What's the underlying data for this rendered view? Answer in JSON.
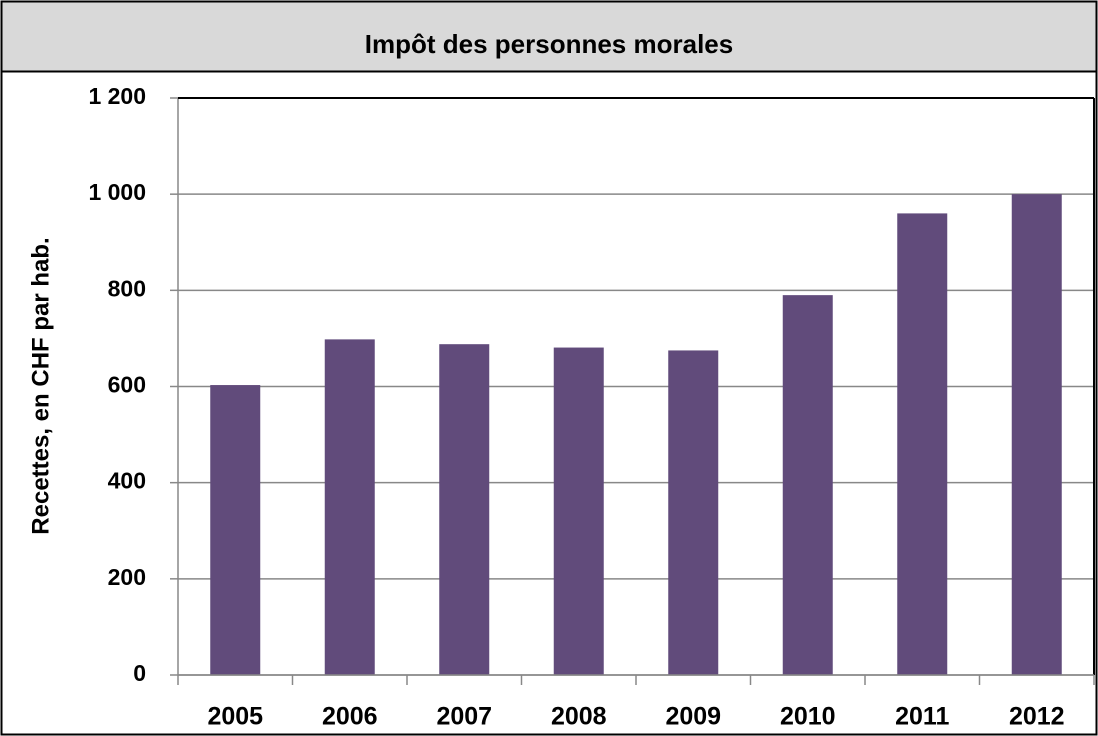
{
  "chart_data": {
    "type": "bar",
    "title": "Impôt des personnes morales",
    "y_label": "Recettes, en CHF par hab.",
    "categories": [
      "2005",
      "2006",
      "2007",
      "2008",
      "2009",
      "2010",
      "2011",
      "2012"
    ],
    "values": [
      603,
      698,
      688,
      681,
      675,
      790,
      960,
      1000
    ],
    "color": "#614b7b",
    "ylim": [
      0,
      1200
    ],
    "yticks": [
      0,
      200,
      400,
      600,
      800,
      {
        "value": 1000,
        "label": "1 000"
      },
      {
        "value": 1200,
        "label": "1 200"
      }
    ],
    "grid": true
  }
}
